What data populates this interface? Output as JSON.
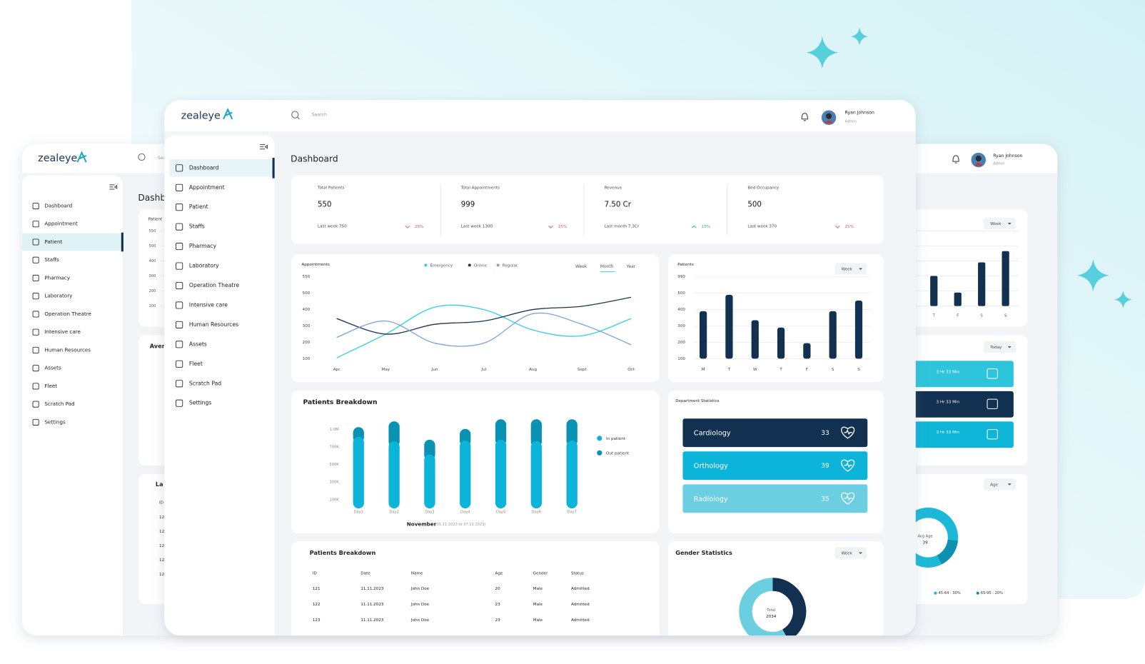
{
  "main": {
    "brand": "zealeye",
    "search_placeholder": "Search",
    "user": {
      "name": "Ryan Johnson",
      "role": "Admin"
    },
    "menu": [
      "Dashboard",
      "Appointment",
      "Patient",
      "Staffs",
      "Pharmacy",
      "Laboratory",
      "Operation Theatre",
      "Intensive care",
      "Human Resources",
      "Assets",
      "Fleet",
      "Scratch Pad",
      "Settings"
    ],
    "page_title": "Dashboard",
    "stats": [
      {
        "label": "Total Patients",
        "value": 550,
        "note": "Last week 750",
        "change": "25%"
      },
      {
        "label": "Total Appointments",
        "value": 999,
        "note": "Last week 1300",
        "change": "25%"
      },
      {
        "label": "Revenue",
        "value": "7.50 Cr",
        "note": "Last month 7.3Cr",
        "change": "15%"
      },
      {
        "label": "Bed Occupancy",
        "value": 500,
        "note": "Last week 370",
        "change": "25%"
      }
    ],
    "appointments": {
      "type": "line",
      "title": "Appointments",
      "tabs": [
        "Week",
        "Month",
        "Year"
      ],
      "categories": [
        "Apr",
        "May",
        "Jun",
        "Jul",
        "Aug",
        "Sept",
        "Oct"
      ],
      "series": [
        {
          "name": "Emergency",
          "color": "#2fd2e2",
          "values": [
            105,
            250,
            415,
            400,
            275,
            240,
            345
          ]
        },
        {
          "name": "Online",
          "color": "#1d3557",
          "values": [
            345,
            250,
            310,
            330,
            400,
            420,
            475
          ]
        },
        {
          "name": "Regular",
          "color": "#7fa6d6",
          "values": [
            230,
            330,
            195,
            195,
            375,
            310,
            185
          ]
        }
      ],
      "ylim": [
        100,
        550
      ],
      "yticks": [
        100,
        200,
        300,
        400,
        500,
        550
      ]
    },
    "patients": {
      "type": "bar",
      "title": "Patients",
      "period": "Week",
      "categories": [
        "M",
        "T",
        "W",
        "T",
        "F",
        "S",
        "S"
      ],
      "values": [
        390,
        490,
        335,
        290,
        195,
        390,
        455
      ],
      "color": "#12304f",
      "ylim": [
        100,
        990
      ],
      "yticks": [
        100,
        200,
        300,
        400,
        500,
        990
      ],
      "grid": true
    },
    "breakdown": {
      "type": "stacked-bar",
      "title": "Patients Breakdown",
      "categories": [
        "Day1",
        "Day2",
        "Day3",
        "Day4",
        "Day5",
        "Day6",
        "Day7"
      ],
      "series": [
        {
          "name": "In patient",
          "color": "#0db4d9",
          "values": [
            875000,
            800000,
            615000,
            810000,
            825000,
            800000,
            810000
          ]
        },
        {
          "name": "Out patient",
          "color": "#0a92b3",
          "values": [
            165000,
            340000,
            210000,
            200000,
            350000,
            375000,
            365000
          ]
        }
      ],
      "ylim": [
        0,
        1200000
      ],
      "yticks": [
        {
          "value": 100000,
          "label": "100K"
        },
        {
          "value": 300000,
          "label": "300K"
        },
        {
          "value": 500000,
          "label": "500K"
        },
        {
          "value": 700000,
          "label": "700K"
        },
        {
          "value": 1000000,
          "label": "1.0M"
        }
      ],
      "month": "November",
      "range": "(01.11.2023 to 07.11.2023)"
    },
    "departments": {
      "title": "Department Statistics",
      "items": [
        {
          "name": "Cardiology",
          "value": 33,
          "color": "#12304f"
        },
        {
          "name": "Orthology",
          "value": 39,
          "color": "#0db4d9"
        },
        {
          "name": "Radiology",
          "value": 35,
          "color": "#6ccfe1"
        }
      ]
    },
    "table": {
      "title": "Patients Breakdown",
      "columns": [
        "ID",
        "Date",
        "Name",
        "Age",
        "Gender",
        "Status"
      ],
      "rows": [
        [
          "121",
          "11.11.2023",
          "John Doe",
          "20",
          "Male",
          "Admitted"
        ],
        [
          "122",
          "11.11.2023",
          "John Doe",
          "23",
          "Male",
          "Admitted"
        ],
        [
          "123",
          "11.11.2023",
          "John Doe",
          "23",
          "Male",
          "Admitted"
        ]
      ]
    },
    "gender": {
      "type": "donut",
      "title": "Gender Statistics",
      "period": "Week",
      "total_label": "Total",
      "total": 2034,
      "values": [
        42,
        58
      ],
      "colors": [
        "#12304f",
        "#6ccfe1"
      ]
    }
  },
  "back_window": {
    "patients": {
      "type": "bar",
      "title": "Patient",
      "period": "Week",
      "categories": [
        "T",
        "F",
        "S",
        "S"
      ],
      "values": [
        300,
        190,
        390,
        465
      ],
      "color": "#12304f",
      "ylim": [
        100,
        550
      ],
      "yticks": [
        100,
        200,
        300,
        400,
        500,
        550
      ],
      "grid": true
    },
    "average_title": "Aver",
    "today": "Today",
    "durations": [
      "3 Hr 33 Min",
      "3 Hr 33 Min",
      "3 Hr 33 Min"
    ],
    "last_title": "La",
    "id_header": "ID",
    "ids": [
      "12",
      "12",
      "12",
      "12",
      "12"
    ],
    "age_filter": "Age",
    "avg_age_label": "Avg Age",
    "avg_age": 39,
    "age_legend": [
      "45-64 : 30%",
      "65-95 : 20%"
    ]
  }
}
